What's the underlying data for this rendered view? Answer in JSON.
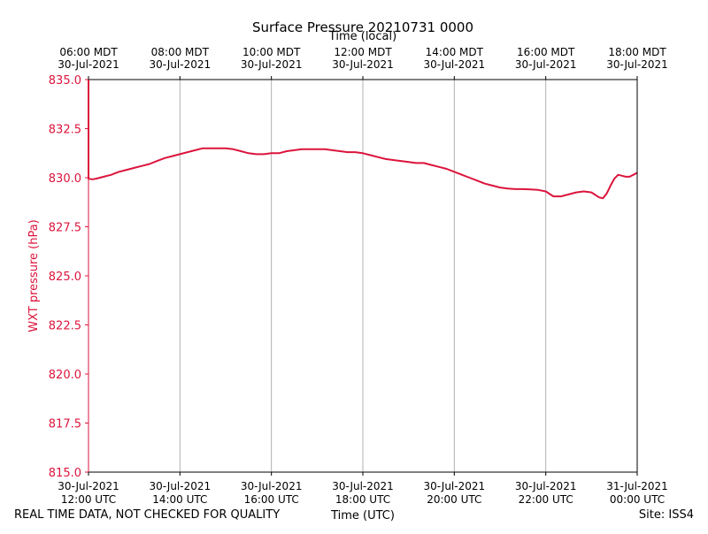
{
  "chart_data": {
    "type": "line",
    "title": "Surface Pressure 20210731 0000",
    "xlabel": "Time (UTC)",
    "x2label": "Time (local)",
    "ylabel": "WXT pressure (hPa)",
    "ylim": [
      815.0,
      835.0
    ],
    "yticks": [
      "815.0",
      "817.5",
      "820.0",
      "822.5",
      "825.0",
      "827.5",
      "830.0",
      "832.5",
      "835.0"
    ],
    "xlim": [
      "2021-07-30T12:00",
      "2021-07-31T00:00"
    ],
    "xticks": [
      {
        "t": "2021-07-30T12:00",
        "date": "30-Jul-2021",
        "time": "12:00 UTC"
      },
      {
        "t": "2021-07-30T14:00",
        "date": "30-Jul-2021",
        "time": "14:00 UTC"
      },
      {
        "t": "2021-07-30T16:00",
        "date": "30-Jul-2021",
        "time": "16:00 UTC"
      },
      {
        "t": "2021-07-30T18:00",
        "date": "30-Jul-2021",
        "time": "18:00 UTC"
      },
      {
        "t": "2021-07-30T20:00",
        "date": "30-Jul-2021",
        "time": "20:00 UTC"
      },
      {
        "t": "2021-07-30T22:00",
        "date": "30-Jul-2021",
        "time": "22:00 UTC"
      },
      {
        "t": "2021-07-31T00:00",
        "date": "31-Jul-2021",
        "time": "00:00 UTC"
      }
    ],
    "x2ticks": [
      {
        "t": "2021-07-30T12:00",
        "time": "06:00 MDT",
        "date": "30-Jul-2021"
      },
      {
        "t": "2021-07-30T14:00",
        "time": "08:00 MDT",
        "date": "30-Jul-2021"
      },
      {
        "t": "2021-07-30T16:00",
        "time": "10:00 MDT",
        "date": "30-Jul-2021"
      },
      {
        "t": "2021-07-30T18:00",
        "time": "12:00 MDT",
        "date": "30-Jul-2021"
      },
      {
        "t": "2021-07-30T20:00",
        "time": "14:00 MDT",
        "date": "30-Jul-2021"
      },
      {
        "t": "2021-07-30T22:00",
        "time": "16:00 MDT",
        "date": "30-Jul-2021"
      },
      {
        "t": "2021-07-31T00:00",
        "time": "18:00 MDT",
        "date": "30-Jul-2021"
      }
    ],
    "grid": "vertical",
    "series": [
      {
        "color": "#dc143c",
        "x": [
          "2021-07-30T12:00",
          "2021-07-30T12:00",
          "2021-07-30T12:05",
          "2021-07-30T12:10",
          "2021-07-30T12:15",
          "2021-07-30T12:20",
          "2021-07-30T12:30",
          "2021-07-30T12:40",
          "2021-07-30T12:50",
          "2021-07-30T13:00",
          "2021-07-30T13:10",
          "2021-07-30T13:20",
          "2021-07-30T13:30",
          "2021-07-30T13:40",
          "2021-07-30T13:50",
          "2021-07-30T14:00",
          "2021-07-30T14:10",
          "2021-07-30T14:20",
          "2021-07-30T14:30",
          "2021-07-30T14:40",
          "2021-07-30T14:50",
          "2021-07-30T15:00",
          "2021-07-30T15:10",
          "2021-07-30T15:20",
          "2021-07-30T15:30",
          "2021-07-30T15:40",
          "2021-07-30T15:50",
          "2021-07-30T16:00",
          "2021-07-30T16:10",
          "2021-07-30T16:20",
          "2021-07-30T16:30",
          "2021-07-30T16:40",
          "2021-07-30T16:50",
          "2021-07-30T17:00",
          "2021-07-30T17:10",
          "2021-07-30T17:20",
          "2021-07-30T17:30",
          "2021-07-30T17:40",
          "2021-07-30T17:50",
          "2021-07-30T18:00",
          "2021-07-30T18:10",
          "2021-07-30T18:20",
          "2021-07-30T18:30",
          "2021-07-30T18:40",
          "2021-07-30T18:50",
          "2021-07-30T19:00",
          "2021-07-30T19:10",
          "2021-07-30T19:20",
          "2021-07-30T19:30",
          "2021-07-30T19:40",
          "2021-07-30T19:50",
          "2021-07-30T20:00",
          "2021-07-30T20:10",
          "2021-07-30T20:20",
          "2021-07-30T20:30",
          "2021-07-30T20:40",
          "2021-07-30T20:50",
          "2021-07-30T21:00",
          "2021-07-30T21:10",
          "2021-07-30T21:20",
          "2021-07-30T21:30",
          "2021-07-30T21:40",
          "2021-07-30T21:50",
          "2021-07-30T22:00",
          "2021-07-30T22:10",
          "2021-07-30T22:20",
          "2021-07-30T22:30",
          "2021-07-30T22:40",
          "2021-07-30T22:50",
          "2021-07-30T23:00",
          "2021-07-30T23:10",
          "2021-07-30T23:15",
          "2021-07-30T23:20",
          "2021-07-30T23:25",
          "2021-07-30T23:30",
          "2021-07-30T23:35",
          "2021-07-30T23:40",
          "2021-07-30T23:45",
          "2021-07-30T23:50",
          "2021-07-30T23:55",
          "2021-07-31T00:00"
        ],
        "y": [
          835.0,
          829.95,
          829.92,
          829.95,
          830.0,
          830.05,
          830.15,
          830.3,
          830.4,
          830.5,
          830.6,
          830.7,
          830.85,
          831.0,
          831.1,
          831.2,
          831.3,
          831.4,
          831.5,
          831.5,
          831.5,
          831.5,
          831.45,
          831.35,
          831.25,
          831.2,
          831.2,
          831.25,
          831.25,
          831.35,
          831.4,
          831.45,
          831.45,
          831.45,
          831.45,
          831.4,
          831.35,
          831.3,
          831.3,
          831.25,
          831.15,
          831.05,
          830.95,
          830.9,
          830.85,
          830.8,
          830.75,
          830.75,
          830.65,
          830.55,
          830.45,
          830.3,
          830.15,
          830.0,
          829.85,
          829.7,
          829.6,
          829.5,
          829.45,
          829.42,
          829.42,
          829.4,
          829.38,
          829.3,
          829.05,
          829.05,
          829.15,
          829.25,
          829.3,
          829.25,
          829.0,
          828.95,
          829.2,
          829.6,
          829.95,
          830.15,
          830.1,
          830.05,
          830.05,
          830.15,
          830.25
        ]
      }
    ]
  },
  "footer": {
    "disclaimer": "REAL TIME DATA, NOT CHECKED FOR QUALITY",
    "site": "Site: ISS4"
  },
  "colors": {
    "series": "#dc143c",
    "yaxis": "#dc143c",
    "grid": "#b0b0b0"
  }
}
